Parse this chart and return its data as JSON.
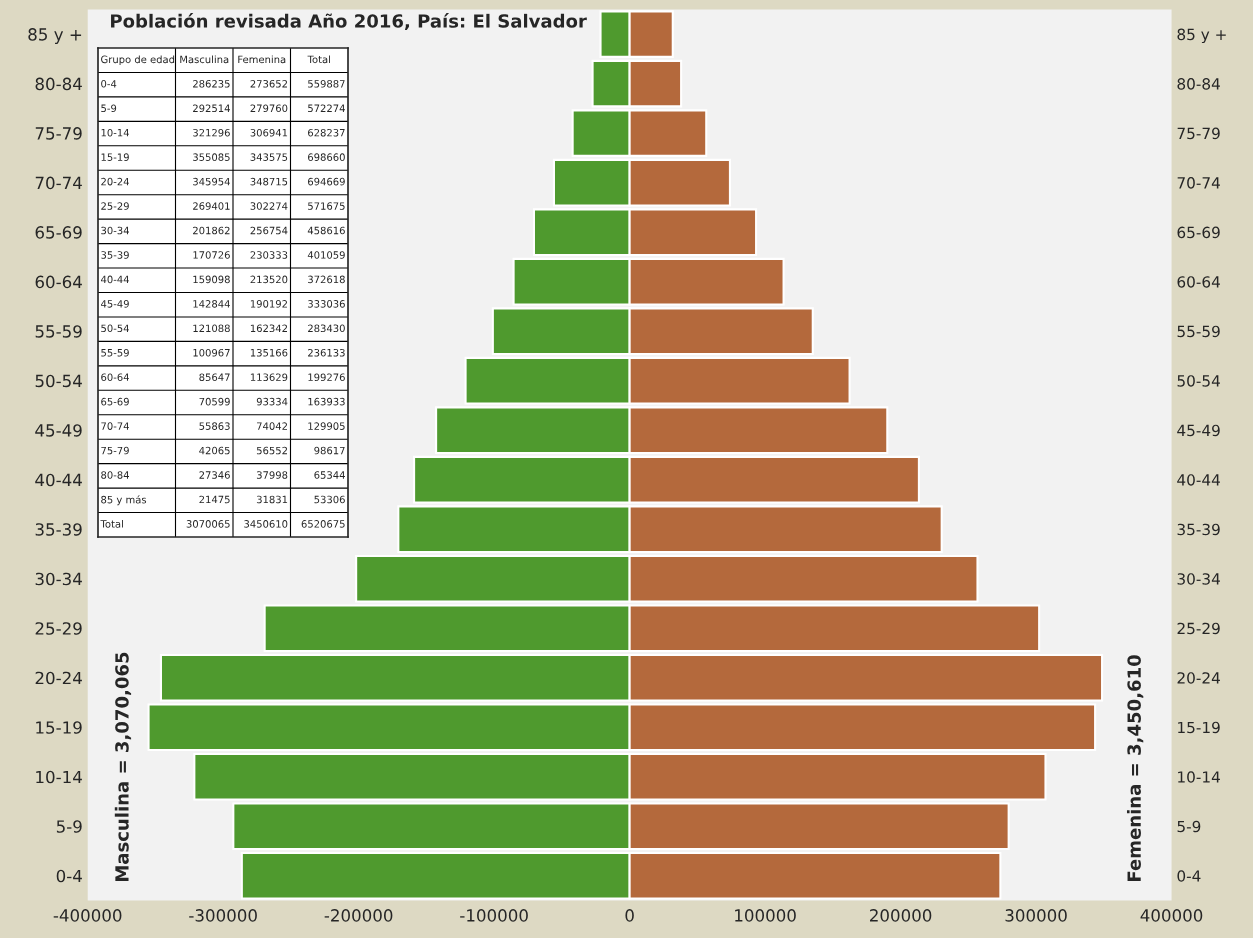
{
  "chart_data": [
    {
      "type": "bar",
      "orientation": "horizontal",
      "stacked": true,
      "title": "Población revisada Año 2016, País: El Salvador",
      "categories": [
        "85 y +",
        "80-84",
        "75-79",
        "70-74",
        "65-69",
        "60-64",
        "55-59",
        "50-54",
        "45-49",
        "40-44",
        "35-39",
        "30-34",
        "25-29",
        "20-24",
        "15-19",
        "10-14",
        "5-9",
        "0-4"
      ],
      "series": [
        {
          "color": "#4f9a2e",
          "values": [
            -21475,
            -27346,
            -42065,
            -55863,
            -70599,
            -85647,
            -100967,
            -121088,
            -142844,
            -159098,
            -170726,
            -201862,
            -269401,
            -345954,
            -355085,
            -321296,
            -292514,
            -286235
          ]
        },
        {
          "color": "#b4693c",
          "values": [
            31831,
            37998,
            56552,
            74042,
            93334,
            113629,
            135166,
            162342,
            190192,
            213520,
            230333,
            256754,
            302274,
            348715,
            343575,
            306941,
            279760,
            273652
          ]
        }
      ],
      "annotations": [
        "Masculina = 3,070,065",
        "Femenina = 3,450,610"
      ],
      "xlim": [
        -400000,
        400000
      ],
      "xticks": [
        -400000,
        -300000,
        -200000,
        -100000,
        0,
        100000,
        200000,
        300000,
        400000
      ]
    },
    {
      "type": "other",
      "annotations": [
        "Grupo de edad",
        "Masculina",
        "Femenina",
        "Total",
        "0-4",
        "286235",
        "273652",
        "559887",
        "5-9",
        "292514",
        "279760",
        "572274",
        "10-14",
        "321296",
        "306941",
        "628237",
        "15-19",
        "355085",
        "343575",
        "698660",
        "20-24",
        "345954",
        "348715",
        "694669",
        "25-29",
        "269401",
        "302274",
        "571675",
        "30-34",
        "201862",
        "256754",
        "458616",
        "35-39",
        "170726",
        "230333",
        "401059",
        "40-44",
        "159098",
        "213520",
        "372618",
        "45-49",
        "142844",
        "190192",
        "333036",
        "50-54",
        "121088",
        "162342",
        "283430",
        "55-59",
        "100967",
        "135166",
        "236133",
        "60-64",
        "85647",
        "113629",
        "199276",
        "65-69",
        "70599",
        "93334",
        "163933",
        "70-74",
        "55863",
        "74042",
        "129905",
        "75-79",
        "42065",
        "56552",
        "98617",
        "80-84",
        "27346",
        "37998",
        "65344",
        "85 y más",
        "21475",
        "31831",
        "53306",
        "Total",
        "3070065",
        "3450610",
        "6520675"
      ]
    }
  ]
}
